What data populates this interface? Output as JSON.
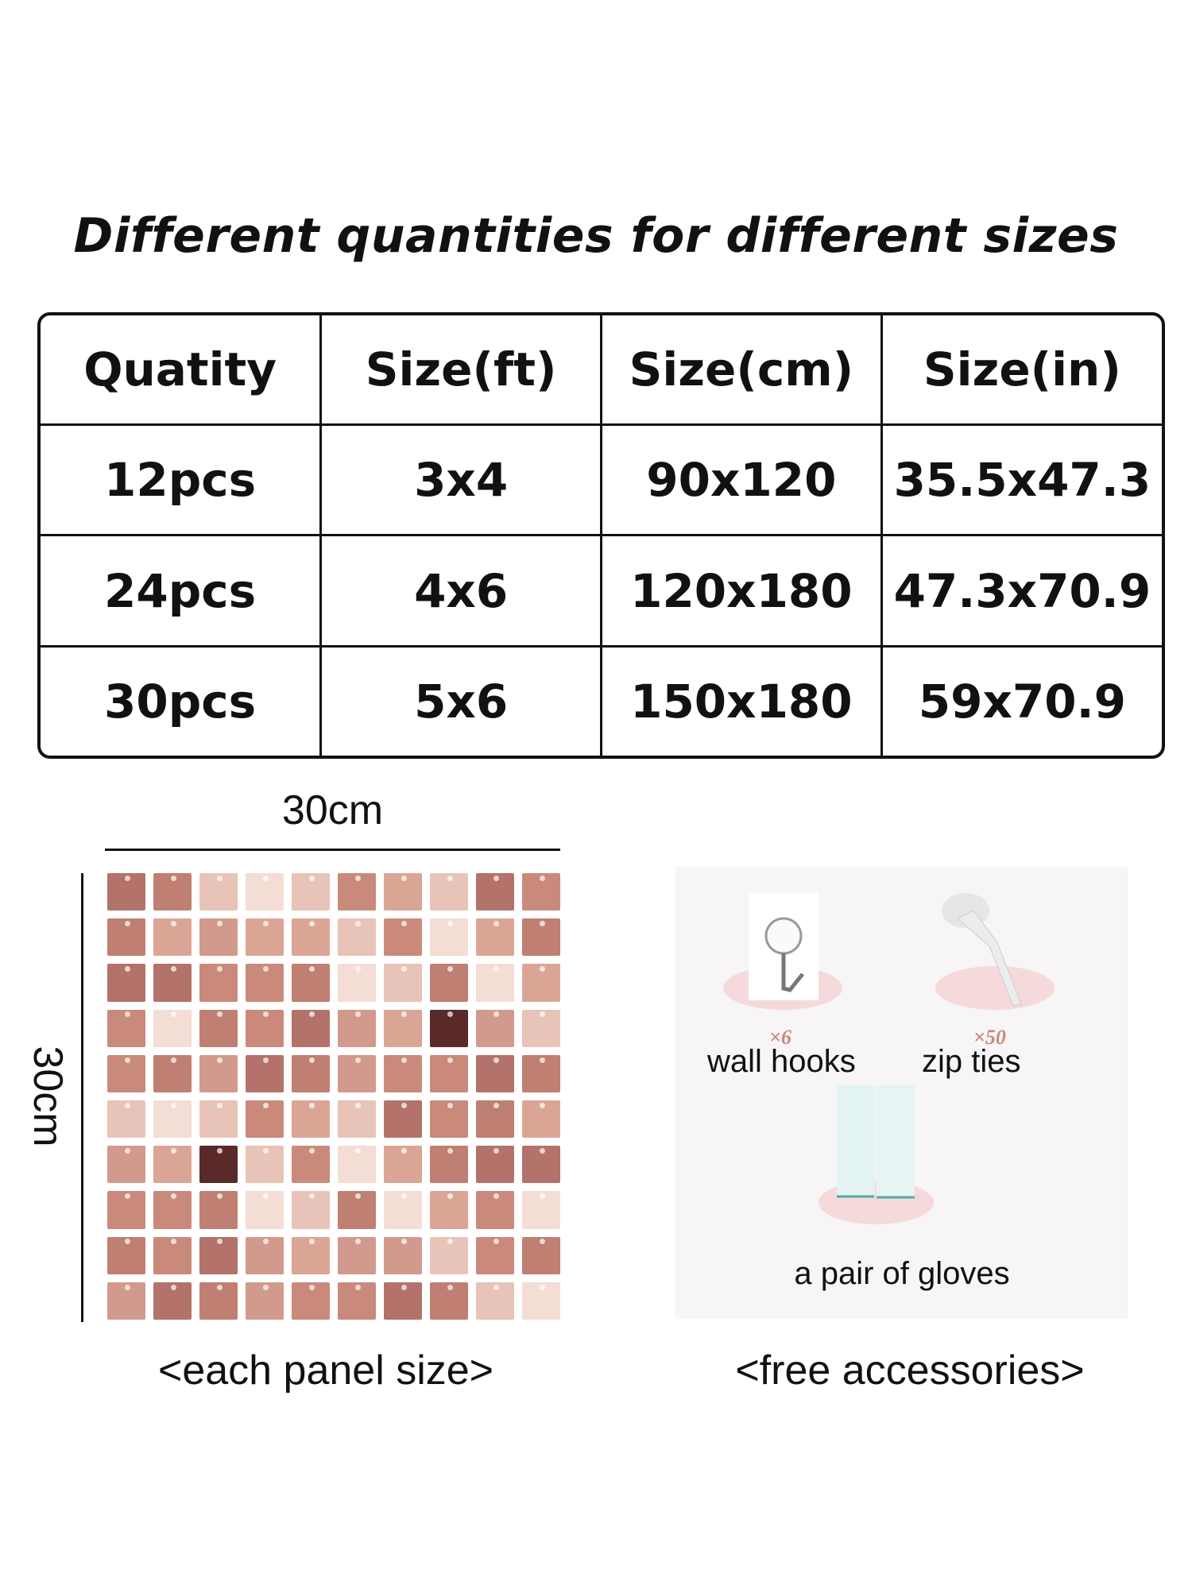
{
  "title": "Different quantities for different sizes",
  "table": {
    "headers": [
      "Quatity",
      "Size(ft)",
      "Size(cm)",
      "Size(in)"
    ],
    "rows": [
      [
        "12pcs",
        "3x4",
        "90x120",
        "35.5x47.3"
      ],
      [
        "24pcs",
        "4x6",
        "120x180",
        "47.3x70.9"
      ],
      [
        "30pcs",
        "5x6",
        "150x180",
        "59x70.9"
      ]
    ]
  },
  "panel": {
    "width_label": "30cm",
    "height_label": "30cm",
    "caption": "<each panel size>",
    "sequin_color": "#c98a7c"
  },
  "accessories": {
    "items": [
      {
        "qty": "×6",
        "label": "wall hooks"
      },
      {
        "qty": "×50",
        "label": "zip ties"
      },
      {
        "label": "a pair of gloves"
      }
    ],
    "caption": "<free accessories>"
  }
}
